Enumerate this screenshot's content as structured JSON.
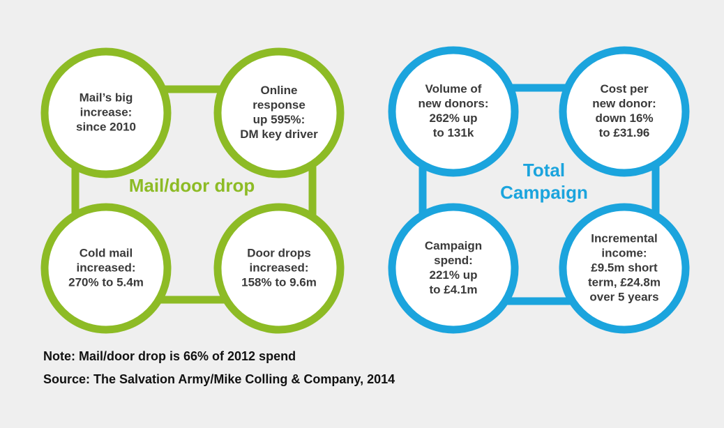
{
  "groups": [
    {
      "title": [
        "Mail/door drop"
      ],
      "nodes": [
        {
          "lines": [
            "Mail’s big",
            "increase:",
            "since 2010"
          ]
        },
        {
          "lines": [
            "Online",
            "response",
            "up 595%:",
            "DM key driver"
          ]
        },
        {
          "lines": [
            "Cold mail",
            "increased:",
            "270% to 5.4m"
          ]
        },
        {
          "lines": [
            "Door drops",
            "increased:",
            "158% to 9.6m"
          ]
        }
      ]
    },
    {
      "title": [
        "Total",
        "Campaign"
      ],
      "nodes": [
        {
          "lines": [
            "Volume of",
            "new donors:",
            "262% up",
            "to 131k"
          ]
        },
        {
          "lines": [
            "Cost per",
            "new donor:",
            "down 16%",
            "to £31.96"
          ]
        },
        {
          "lines": [
            "Campaign",
            "spend:",
            "221% up",
            "to £4.1m"
          ]
        },
        {
          "lines": [
            "Incremental",
            "income:",
            "£9.5m short",
            "term, £24.8m",
            "over 5 years"
          ]
        }
      ]
    }
  ],
  "footer": {
    "note": "Note: Mail/door drop is 66% of 2012 spend",
    "source": "Source: The Salvation Army/Mike Colling & Company, 2014"
  }
}
